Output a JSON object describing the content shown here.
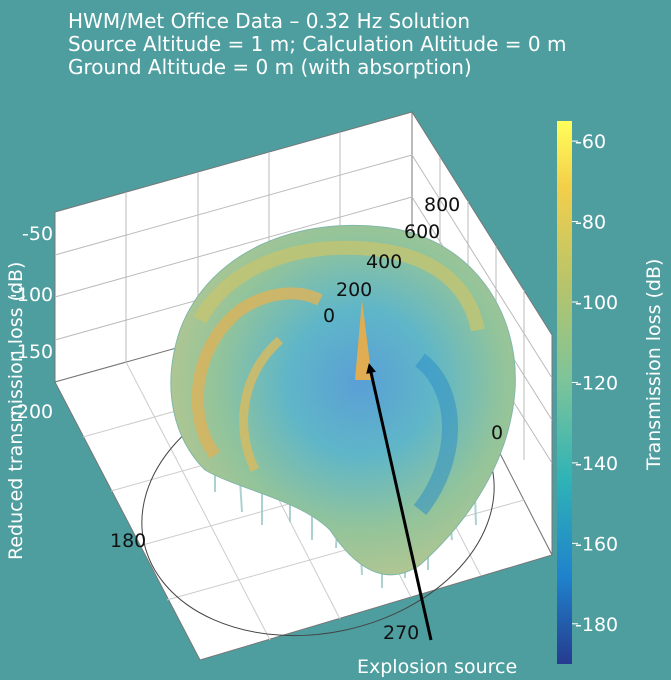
{
  "chart_data": {
    "type": "surface3d",
    "title": [
      "HWM/Met Office Data – 0.32 Hz Solution",
      "Source Altitude = 1 m; Calculation Altitude = 0 m",
      "Ground Altitude = 0 m (with absorption)"
    ],
    "zlabel": "Reduced transmission loss (dB)",
    "z_ticks": [
      "-50",
      "-100",
      "-150",
      "-200"
    ],
    "range_ticks": [
      "0",
      "200",
      "400",
      "600",
      "800"
    ],
    "azimuth_ticks": [
      "0",
      "180",
      "270"
    ],
    "colorbar": {
      "label": "Transmission loss (dB)",
      "range": [
        -190,
        -55
      ],
      "ticks": [
        "-60",
        "-80",
        "-100",
        "-120",
        "-140",
        "-160",
        "-180"
      ],
      "colors": [
        "#ffff5a",
        "#f5c04a",
        "#b8c46a",
        "#7cc496",
        "#2fb3b6",
        "#1e88cc",
        "#233a8c"
      ]
    },
    "annotation": "Explosion source"
  }
}
